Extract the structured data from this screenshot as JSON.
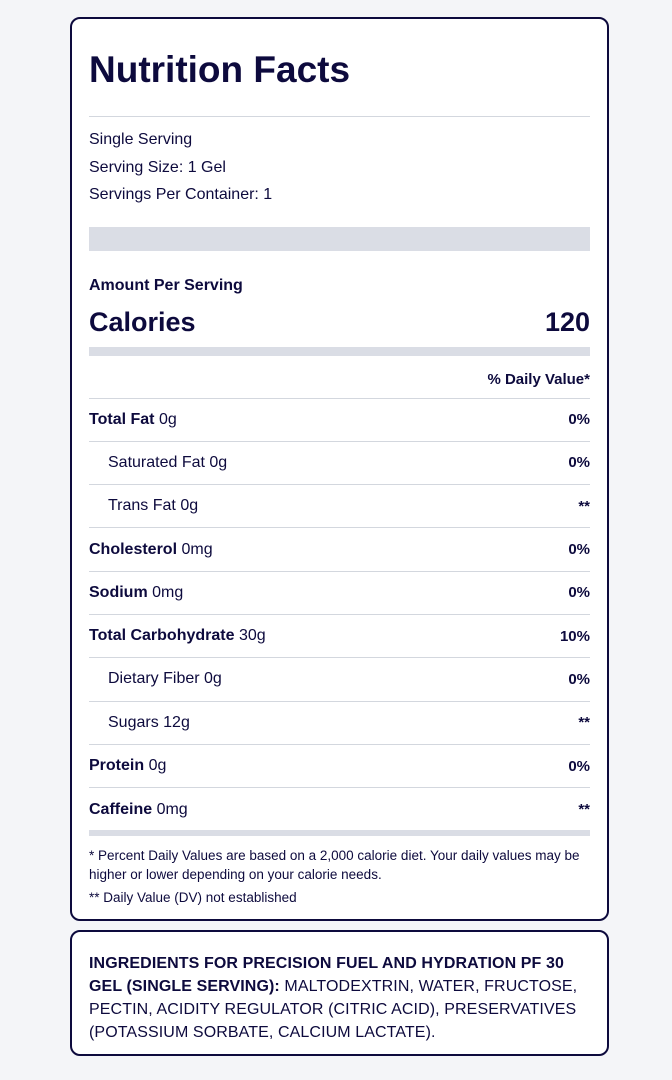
{
  "label": {
    "title": "Nutrition Facts",
    "serving": {
      "type": "Single Serving",
      "size": "Serving Size: 1 Gel",
      "per_container": "Servings Per Container: 1"
    },
    "amount_per_serving": "Amount Per Serving",
    "calories_label": "Calories",
    "calories_value": "120",
    "dv_header": "% Daily Value*",
    "nutrients": [
      {
        "name": "Total Fat",
        "amount": "0g",
        "dv": "0%"
      },
      {
        "name": "Saturated Fat",
        "amount": "0g",
        "dv": "0%"
      },
      {
        "name": "Trans Fat",
        "amount": "0g",
        "dv": "**"
      },
      {
        "name": "Cholesterol",
        "amount": "0mg",
        "dv": "0%"
      },
      {
        "name": "Sodium",
        "amount": "0mg",
        "dv": "0%"
      },
      {
        "name": "Total Carbohydrate",
        "amount": "30g",
        "dv": "10%"
      },
      {
        "name": "Dietary Fiber",
        "amount": "0g",
        "dv": "0%"
      },
      {
        "name": "Sugars",
        "amount": "12g",
        "dv": "**"
      },
      {
        "name": "Protein",
        "amount": "0g",
        "dv": "0%"
      },
      {
        "name": "Caffeine",
        "amount": "0mg",
        "dv": "**"
      }
    ],
    "footnote_1": "* Percent Daily Values are based on a 2,000 calorie diet. Your daily values may be higher or lower depending on your calorie needs.",
    "footnote_2": "** Daily Value (DV) not established"
  },
  "ingredients": {
    "heading": "INGREDIENTS FOR PRECISION FUEL AND HYDRATION PF 30 GEL (SINGLE SERVING):",
    "list": "MALTODEXTRIN, WATER, FRUCTOSE, PECTIN, ACIDITY REGULATOR (CITRIC ACID), PRESERVATIVES (POTASSIUM SORBATE, CALCIUM LACTATE)."
  },
  "colors": {
    "text": "#0d0a3d",
    "bar": "#dadde5",
    "background": "#f4f5f8"
  }
}
